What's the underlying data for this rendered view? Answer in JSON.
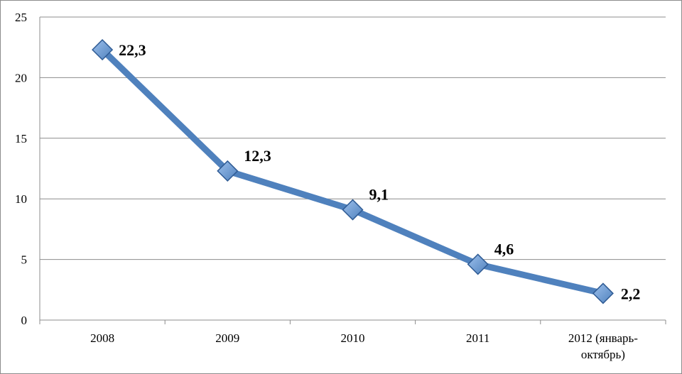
{
  "chart_data": {
    "type": "line",
    "categories": [
      "2008",
      "2009",
      "2010",
      "2011",
      "2012 (январь-октябрь)"
    ],
    "category_lines": [
      [
        "2008"
      ],
      [
        "2009"
      ],
      [
        "2010"
      ],
      [
        "2011"
      ],
      [
        "2012 (январь-",
        "октябрь)"
      ]
    ],
    "values": [
      22.3,
      12.3,
      9.1,
      4.6,
      2.2
    ],
    "data_labels": [
      "22,3",
      "12,3",
      "9,1",
      "4,6",
      "2,2"
    ],
    "y_ticks": [
      0,
      5,
      10,
      15,
      20,
      25
    ],
    "ylim": [
      0,
      25
    ],
    "grid": true,
    "legend": "none",
    "title": "",
    "xlabel": "",
    "ylabel": "",
    "colors": {
      "line": "#4f81bd",
      "marker_fill": "#4f81bd",
      "marker_light": "#9dc0ec",
      "marker_stroke": "#2f5b94",
      "gridline": "#8c8c8c"
    }
  }
}
